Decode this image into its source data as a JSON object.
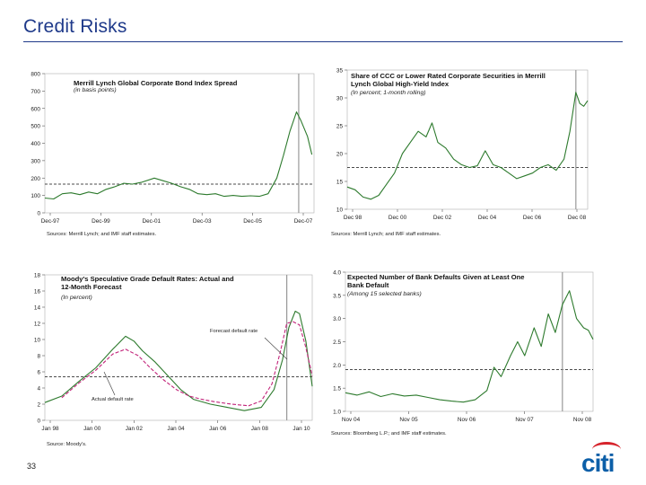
{
  "slide": {
    "title": "Credit Risks",
    "page_number": "33",
    "logo_text": "citi"
  },
  "colors": {
    "title": "#1f3a8a",
    "line": "#2d7a2d",
    "forecast": "#c2247a",
    "vline": "#999999",
    "dash": "#111111",
    "logo_blue": "#0c5fa8",
    "logo_red": "#d6232b"
  },
  "chart_data": [
    {
      "id": "c1",
      "type": "line",
      "title": "Merrill Lynch Global Corporate Bond Index Spread",
      "subtitle": "(in basis points)",
      "source": "Sources: Merrill Lynch; and IMF staff estimates.",
      "x_tick_labels": [
        "Dec-97",
        "Dec-99",
        "Dec-01",
        "Dec-03",
        "Dec-05",
        "Dec-07"
      ],
      "y_tick_labels": [
        "0",
        "100",
        "200",
        "300",
        "400",
        "500",
        "600",
        "700",
        "800"
      ],
      "ylim": [
        0,
        800
      ],
      "xlim": [
        0,
        12.3
      ],
      "reference_line": 165,
      "vertical_line_x": 11.6,
      "series": [
        {
          "color": "#2d7a2d",
          "points": [
            [
              0,
              85
            ],
            [
              0.4,
              80
            ],
            [
              0.8,
              110
            ],
            [
              1.2,
              115
            ],
            [
              1.6,
              105
            ],
            [
              2,
              120
            ],
            [
              2.4,
              110
            ],
            [
              2.8,
              135
            ],
            [
              3.2,
              150
            ],
            [
              3.6,
              170
            ],
            [
              4,
              165
            ],
            [
              4.4,
              175
            ],
            [
              5,
              200
            ],
            [
              5.4,
              185
            ],
            [
              5.8,
              170
            ],
            [
              6.2,
              150
            ],
            [
              6.6,
              135
            ],
            [
              7,
              110
            ],
            [
              7.4,
              105
            ],
            [
              7.8,
              110
            ],
            [
              8.2,
              95
            ],
            [
              8.6,
              100
            ],
            [
              9,
              95
            ],
            [
              9.4,
              98
            ],
            [
              9.8,
              95
            ],
            [
              10.2,
              110
            ],
            [
              10.6,
              200
            ],
            [
              10.9,
              330
            ],
            [
              11.2,
              470
            ],
            [
              11.5,
              580
            ],
            [
              11.7,
              530
            ],
            [
              12,
              440
            ],
            [
              12.2,
              335
            ]
          ]
        }
      ]
    },
    {
      "id": "c2",
      "type": "line",
      "title": "Share of CCC or Lower Rated Corporate Securities in Merrill Lynch Global High-Yield Index",
      "subtitle": "(In percent; 1-month rolling)",
      "source": "Sources: Merrill Lynch; and IMF staff estimates.",
      "x_tick_labels": [
        "Dec 98",
        "Dec 00",
        "Dec 02",
        "Dec 04",
        "Dec 06",
        "Dec 08"
      ],
      "y_tick_labels": [
        "10",
        "15",
        "20",
        "25",
        "30",
        "35"
      ],
      "ylim": [
        10,
        35
      ],
      "xlim": [
        0,
        12.2
      ],
      "reference_line": 17.5,
      "vertical_line_x": 11.6,
      "series": [
        {
          "color": "#2d7a2d",
          "points": [
            [
              0,
              14
            ],
            [
              0.4,
              13.5
            ],
            [
              0.8,
              12.2
            ],
            [
              1.2,
              11.8
            ],
            [
              1.6,
              12.5
            ],
            [
              2,
              14.5
            ],
            [
              2.4,
              16.5
            ],
            [
              2.8,
              20
            ],
            [
              3.2,
              22
            ],
            [
              3.6,
              24
            ],
            [
              4,
              23
            ],
            [
              4.3,
              25.5
            ],
            [
              4.6,
              22
            ],
            [
              5,
              21
            ],
            [
              5.4,
              19
            ],
            [
              5.8,
              18
            ],
            [
              6.2,
              17.5
            ],
            [
              6.6,
              17.8
            ],
            [
              7,
              20.5
            ],
            [
              7.4,
              18
            ],
            [
              7.8,
              17.5
            ],
            [
              8.2,
              16.5
            ],
            [
              8.6,
              15.5
            ],
            [
              9,
              16
            ],
            [
              9.4,
              16.5
            ],
            [
              9.8,
              17.5
            ],
            [
              10.2,
              18
            ],
            [
              10.6,
              17
            ],
            [
              11,
              19
            ],
            [
              11.3,
              24
            ],
            [
              11.6,
              31
            ],
            [
              11.8,
              29
            ],
            [
              12,
              28.5
            ],
            [
              12.2,
              29.5
            ]
          ]
        }
      ]
    },
    {
      "id": "c3",
      "type": "line",
      "title": "Moody's Speculative Grade Default Rates: Actual and 12-Month Forecast",
      "subtitle": "(In percent)",
      "source": "Source: Moody's.",
      "x_tick_labels": [
        "Jan 98",
        "Jan 00",
        "Jan 02",
        "Jan 04",
        "Jan 06",
        "Jan 08",
        "Jan 10"
      ],
      "y_tick_labels": [
        "0",
        "2",
        "4",
        "6",
        "8",
        "10",
        "12",
        "14",
        "16",
        "18"
      ],
      "ylim": [
        0,
        18
      ],
      "xlim": [
        0,
        12.6
      ],
      "reference_line": 5.4,
      "vertical_line_x": 11.4,
      "series": [
        {
          "name": "Actual default rate",
          "color": "#2d7a2d",
          "points": [
            [
              0,
              2.2
            ],
            [
              0.8,
              3
            ],
            [
              1.6,
              4.8
            ],
            [
              2.4,
              6.5
            ],
            [
              3.2,
              8.8
            ],
            [
              3.8,
              10.4
            ],
            [
              4.2,
              9.8
            ],
            [
              4.6,
              8.6
            ],
            [
              5.2,
              7.2
            ],
            [
              5.8,
              5.5
            ],
            [
              6.4,
              3.8
            ],
            [
              7,
              2.6
            ],
            [
              7.8,
              2
            ],
            [
              8.6,
              1.6
            ],
            [
              9.4,
              1.2
            ],
            [
              10.2,
              1.6
            ],
            [
              10.8,
              3.8
            ],
            [
              11.2,
              7.5
            ],
            [
              11.5,
              11.5
            ],
            [
              11.8,
              13.5
            ],
            [
              12,
              13.2
            ],
            [
              12.3,
              9.8
            ],
            [
              12.6,
              4.2
            ]
          ]
        },
        {
          "name": "Forecast default rate",
          "color": "#c2247a",
          "points": [
            [
              0.8,
              2.8
            ],
            [
              1.6,
              4.6
            ],
            [
              2.4,
              6.2
            ],
            [
              3.2,
              8.2
            ],
            [
              3.8,
              8.8
            ],
            [
              4.4,
              8
            ],
            [
              5,
              6.4
            ],
            [
              5.6,
              5
            ],
            [
              6.2,
              3.8
            ],
            [
              6.8,
              3
            ],
            [
              7.4,
              2.6
            ],
            [
              8,
              2.3
            ],
            [
              8.8,
              2
            ],
            [
              9.6,
              1.8
            ],
            [
              10.2,
              2.4
            ],
            [
              10.7,
              4.5
            ],
            [
              11.1,
              8.5
            ],
            [
              11.4,
              12
            ],
            [
              11.7,
              12.2
            ],
            [
              12,
              11.8
            ],
            [
              12.3,
              9
            ],
            [
              12.6,
              5.5
            ]
          ]
        }
      ],
      "annotations": {
        "forecast_label": "Forecast default rate",
        "actual_label": "Actual default rate"
      }
    },
    {
      "id": "c4",
      "type": "line",
      "title": "Expected Number of Bank Defaults Given at Least One Bank Default",
      "subtitle": "(Among 15 selected banks)",
      "source": "Sources: Bloomberg L.P.; and IMF staff estimates.",
      "x_tick_labels": [
        "Nov 04",
        "Nov 05",
        "Nov 06",
        "Nov 07",
        "Nov 08"
      ],
      "y_tick_labels": [
        "1.0",
        "1.5",
        "2.0",
        "2.5",
        "3.0",
        "3.5",
        "4.0"
      ],
      "ylim": [
        1,
        4
      ],
      "xlim": [
        0,
        10.5
      ],
      "reference_line": 1.9,
      "vertical_line_x": 9.2,
      "series": [
        {
          "color": "#2d7a2d",
          "points": [
            [
              0,
              1.4
            ],
            [
              0.5,
              1.35
            ],
            [
              1,
              1.42
            ],
            [
              1.5,
              1.32
            ],
            [
              2,
              1.38
            ],
            [
              2.5,
              1.33
            ],
            [
              3,
              1.35
            ],
            [
              3.5,
              1.3
            ],
            [
              4,
              1.25
            ],
            [
              4.5,
              1.22
            ],
            [
              5,
              1.2
            ],
            [
              5.5,
              1.25
            ],
            [
              6,
              1.45
            ],
            [
              6.3,
              1.95
            ],
            [
              6.6,
              1.75
            ],
            [
              7,
              2.2
            ],
            [
              7.3,
              2.5
            ],
            [
              7.6,
              2.2
            ],
            [
              8,
              2.8
            ],
            [
              8.3,
              2.4
            ],
            [
              8.6,
              3.1
            ],
            [
              8.9,
              2.7
            ],
            [
              9.2,
              3.3
            ],
            [
              9.5,
              3.6
            ],
            [
              9.8,
              3.0
            ],
            [
              10.1,
              2.8
            ],
            [
              10.3,
              2.75
            ],
            [
              10.5,
              2.55
            ]
          ]
        }
      ]
    }
  ]
}
